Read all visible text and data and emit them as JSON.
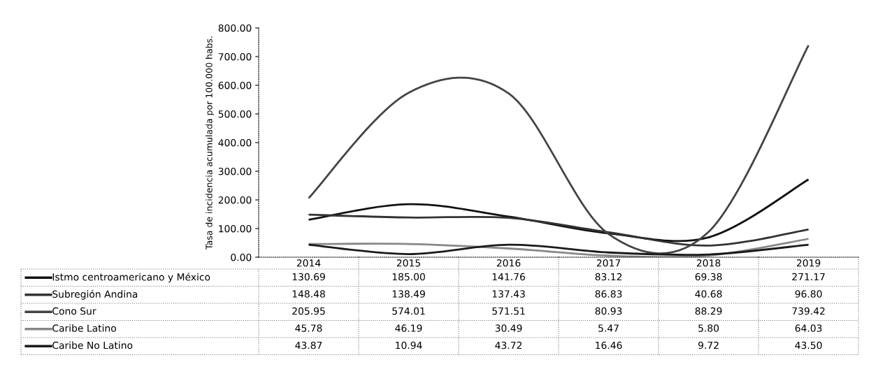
{
  "chart_data": {
    "type": "line",
    "ylabel": "Tasa de incidencia acumulada por 100.000 habs.",
    "categories": [
      "2014",
      "2015",
      "2016",
      "2017",
      "2018",
      "2019"
    ],
    "ylim": [
      0,
      800
    ],
    "yticks": [
      {
        "value": 0,
        "label": "0.00"
      },
      {
        "value": 100,
        "label": "100.00"
      },
      {
        "value": 200,
        "label": "200.00"
      },
      {
        "value": 300,
        "label": "300.00"
      },
      {
        "value": 400,
        "label": "400.00"
      },
      {
        "value": 500,
        "label": "500.00"
      },
      {
        "value": 600,
        "label": "600.00"
      },
      {
        "value": 700,
        "label": "700.00"
      },
      {
        "value": 800,
        "label": "800.00"
      }
    ],
    "grid": false,
    "marker": "none",
    "line_style": "solid",
    "legend": "bottom left",
    "series": [
      {
        "name": "Istmo centroamericano y México",
        "color": "#111111",
        "values": [
          130.69,
          185.0,
          141.76,
          83.12,
          69.38,
          271.17
        ],
        "value_labels": [
          "130.69",
          "185.00",
          "141.76",
          "83.12",
          "69.38",
          "271.17"
        ]
      },
      {
        "name": "Subregión Andina",
        "color": "#333333",
        "values": [
          148.48,
          138.49,
          137.43,
          86.83,
          40.68,
          96.8
        ],
        "value_labels": [
          "148.48",
          "138.49",
          "137.43",
          "86.83",
          "40.68",
          "96.80"
        ]
      },
      {
        "name": "Cono Sur",
        "color": "#444444",
        "values": [
          205.95,
          574.01,
          571.51,
          80.93,
          88.29,
          739.42
        ],
        "value_labels": [
          "205.95",
          "574.01",
          "571.51",
          "80.93",
          "88.29",
          "739.42"
        ]
      },
      {
        "name": "Caribe Latino",
        "color": "#888888",
        "values": [
          45.78,
          46.19,
          30.49,
          5.47,
          5.8,
          64.03
        ],
        "value_labels": [
          "45.78",
          "46.19",
          "30.49",
          "5.47",
          "5.80",
          "64.03"
        ]
      },
      {
        "name": "Caribe No Latino",
        "color": "#1a1a1a",
        "values": [
          43.87,
          10.94,
          43.72,
          16.46,
          9.72,
          43.5
        ],
        "value_labels": [
          "43.87",
          "10.94",
          "43.72",
          "16.46",
          "9.72",
          "43.50"
        ]
      }
    ]
  }
}
